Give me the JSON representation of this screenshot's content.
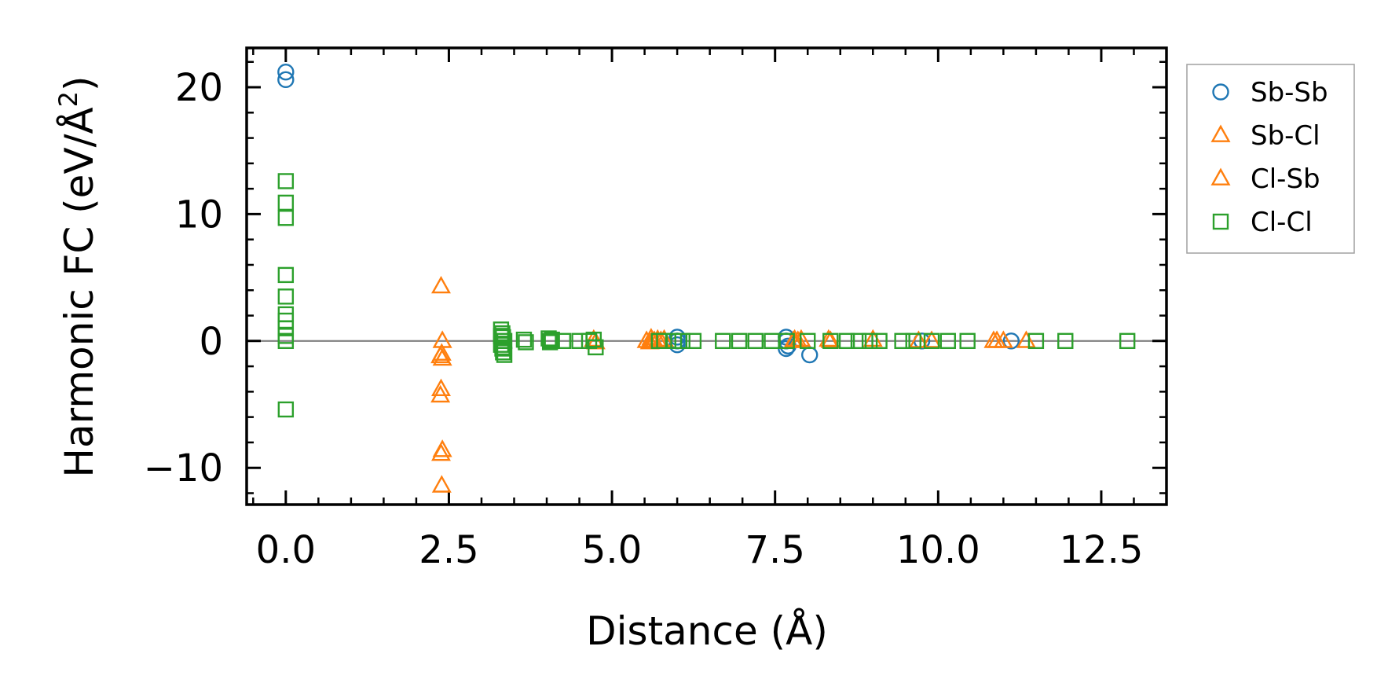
{
  "chart_data": {
    "type": "scatter",
    "xlabel": "Distance (Å)",
    "ylabel_main": "Harmonic FC (eV/Å",
    "ylabel_sup": "2",
    "ylabel_close": ")",
    "xlim": [
      -0.6,
      13.5
    ],
    "ylim": [
      -12.9,
      23.1
    ],
    "xticks": [
      0.0,
      2.5,
      5.0,
      7.5,
      10.0,
      12.5
    ],
    "xtick_labels": [
      "0.0",
      "2.5",
      "5.0",
      "7.5",
      "10.0",
      "12.5"
    ],
    "yticks": [
      -10,
      0,
      10,
      20
    ],
    "ytick_labels": [
      "−10",
      "0",
      "10",
      "20"
    ],
    "x_minor_step": 0.5,
    "y_minor_step": 2,
    "zero_line": true,
    "grid": false,
    "legend_placement": "outside-right-top",
    "series": [
      {
        "name": "Sb-Sb",
        "marker": "circle",
        "color": "#1f77b4",
        "x": [
          0,
          0,
          6.0,
          6.0,
          6.0,
          7.67,
          7.67,
          7.67,
          7.7,
          8.03,
          9.75,
          11.12
        ],
        "y": [
          21.2,
          20.6,
          0.3,
          0.0,
          -0.3,
          0.3,
          0.0,
          -0.6,
          -0.4,
          -1.1,
          0.0,
          0.0
        ]
      },
      {
        "name": "Sb-Cl",
        "marker": "triangle",
        "color": "#ff7f0e",
        "x": [
          2.38,
          2.4,
          2.37,
          2.4,
          2.38,
          2.37,
          2.4,
          2.38,
          2.39,
          5.53,
          5.6,
          5.65,
          5.75,
          5.8,
          7.78,
          7.9,
          8.32,
          9.9,
          10.85,
          11.35
        ],
        "y": [
          4.3,
          0.0,
          -1.2,
          -1.4,
          -3.8,
          -4.3,
          -8.6,
          -8.9,
          -11.4,
          0.0,
          0.2,
          0.0,
          0.0,
          0.1,
          0.0,
          0.1,
          0.1,
          0.0,
          0.0,
          0.0
        ]
      },
      {
        "name": "Cl-Sb",
        "marker": "triangle",
        "color": "#ff7f0e",
        "x": [
          2.39,
          4.72,
          4.75,
          5.58,
          5.62,
          5.7,
          7.8,
          7.85,
          8.35,
          9.0,
          9.7,
          10.9,
          11.0
        ],
        "y": [
          -1.0,
          0.1,
          -0.1,
          -0.1,
          0.0,
          0.1,
          0.1,
          0.0,
          0.0,
          0.1,
          0.0,
          0.0,
          0.0
        ]
      },
      {
        "name": "Cl-Cl",
        "marker": "square",
        "color": "#2ca02c",
        "x": [
          0,
          0,
          0,
          0,
          0,
          0,
          0,
          0,
          0,
          0,
          0,
          3.3,
          3.32,
          3.33,
          3.35,
          3.3,
          3.32,
          3.33,
          3.35,
          3.3,
          3.33,
          3.65,
          3.68,
          4.03,
          4.05,
          4.08,
          4.05,
          4.25,
          4.5,
          4.65,
          4.72,
          4.75,
          5.72,
          5.8,
          5.95,
          6.08,
          6.25,
          6.7,
          6.95,
          7.2,
          7.45,
          7.68,
          8.0,
          8.35,
          8.6,
          8.78,
          8.95,
          9.1,
          9.45,
          9.62,
          9.9,
          10.15,
          10.45,
          11.5,
          11.95,
          12.9
        ],
        "y": [
          12.6,
          10.9,
          9.7,
          5.2,
          3.5,
          2.1,
          1.6,
          1.0,
          0.4,
          0.0,
          -5.4,
          0.9,
          0.6,
          0.3,
          0.0,
          -0.3,
          -0.6,
          -0.9,
          -1.1,
          0.4,
          -0.5,
          0.1,
          -0.1,
          0.2,
          -0.1,
          0.1,
          0.0,
          0.0,
          0.0,
          0.0,
          0.1,
          -0.5,
          0.0,
          0.0,
          0.0,
          0.0,
          0.0,
          0.0,
          0.0,
          0.0,
          0.0,
          0.0,
          0.0,
          0.0,
          0.0,
          0.0,
          0.0,
          0.0,
          0.0,
          0.0,
          0.0,
          0.0,
          0.0,
          0.0,
          0.0,
          0.0
        ]
      }
    ]
  }
}
